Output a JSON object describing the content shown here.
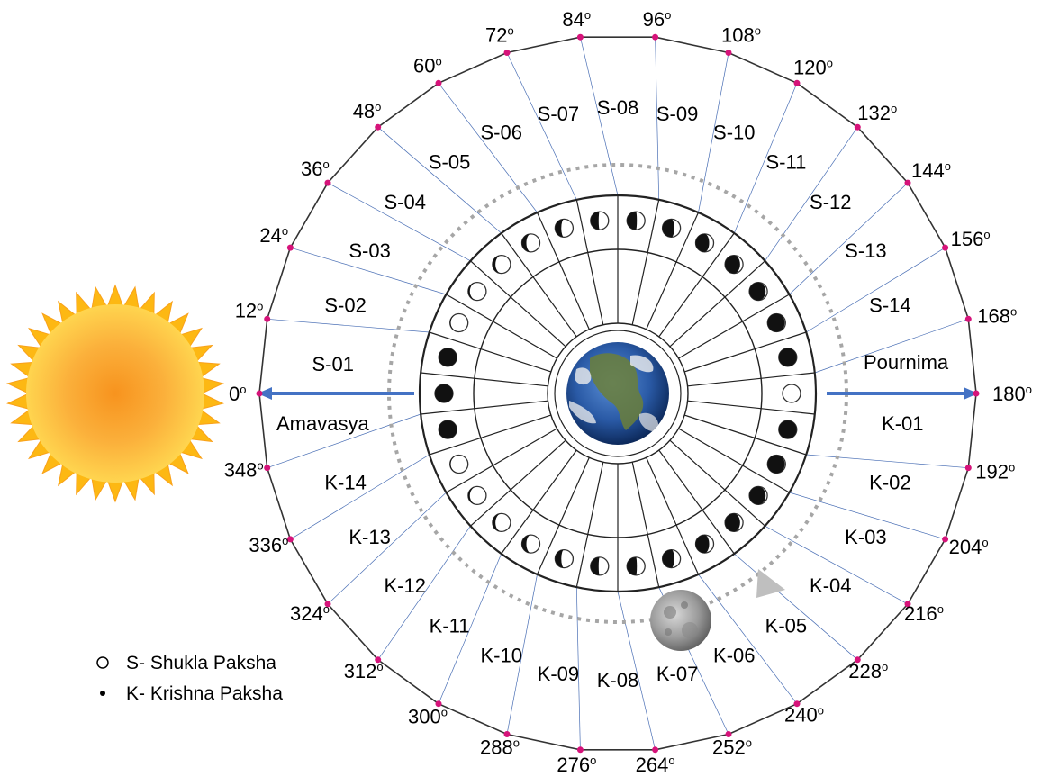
{
  "degree_labels": [
    "0",
    "12",
    "24",
    "36",
    "48",
    "60",
    "72",
    "84",
    "96",
    "108",
    "120",
    "132",
    "144",
    "156",
    "168",
    "180",
    "192",
    "204",
    "216",
    "228",
    "240",
    "252",
    "264",
    "276",
    "288",
    "300",
    "312",
    "324",
    "336",
    "348"
  ],
  "degree_symbol": "o",
  "shukla_labels": [
    "S-01",
    "S-02",
    "S-03",
    "S-04",
    "S-05",
    "S-06",
    "S-07",
    "S-08",
    "S-09",
    "S-10",
    "S-11",
    "S-12",
    "S-13",
    "S-14"
  ],
  "krishna_labels": [
    "K-01",
    "K-02",
    "K-03",
    "K-04",
    "K-05",
    "K-06",
    "K-07",
    "K-08",
    "K-09",
    "K-10",
    "K-11",
    "K-12",
    "K-13",
    "K-14"
  ],
  "new_moon_label": "Amavasya",
  "full_moon_label": "Pournima",
  "legend": {
    "shukla": "S- Shukla Paksha",
    "krishna": "K- Krishna Paksha"
  },
  "colors": {
    "arrow": "#4472C4",
    "tick_dot": "#D6137A",
    "spoke": "#4A6FB5",
    "ring": "#333333",
    "orbit_dashes": "#A6A6A6"
  }
}
